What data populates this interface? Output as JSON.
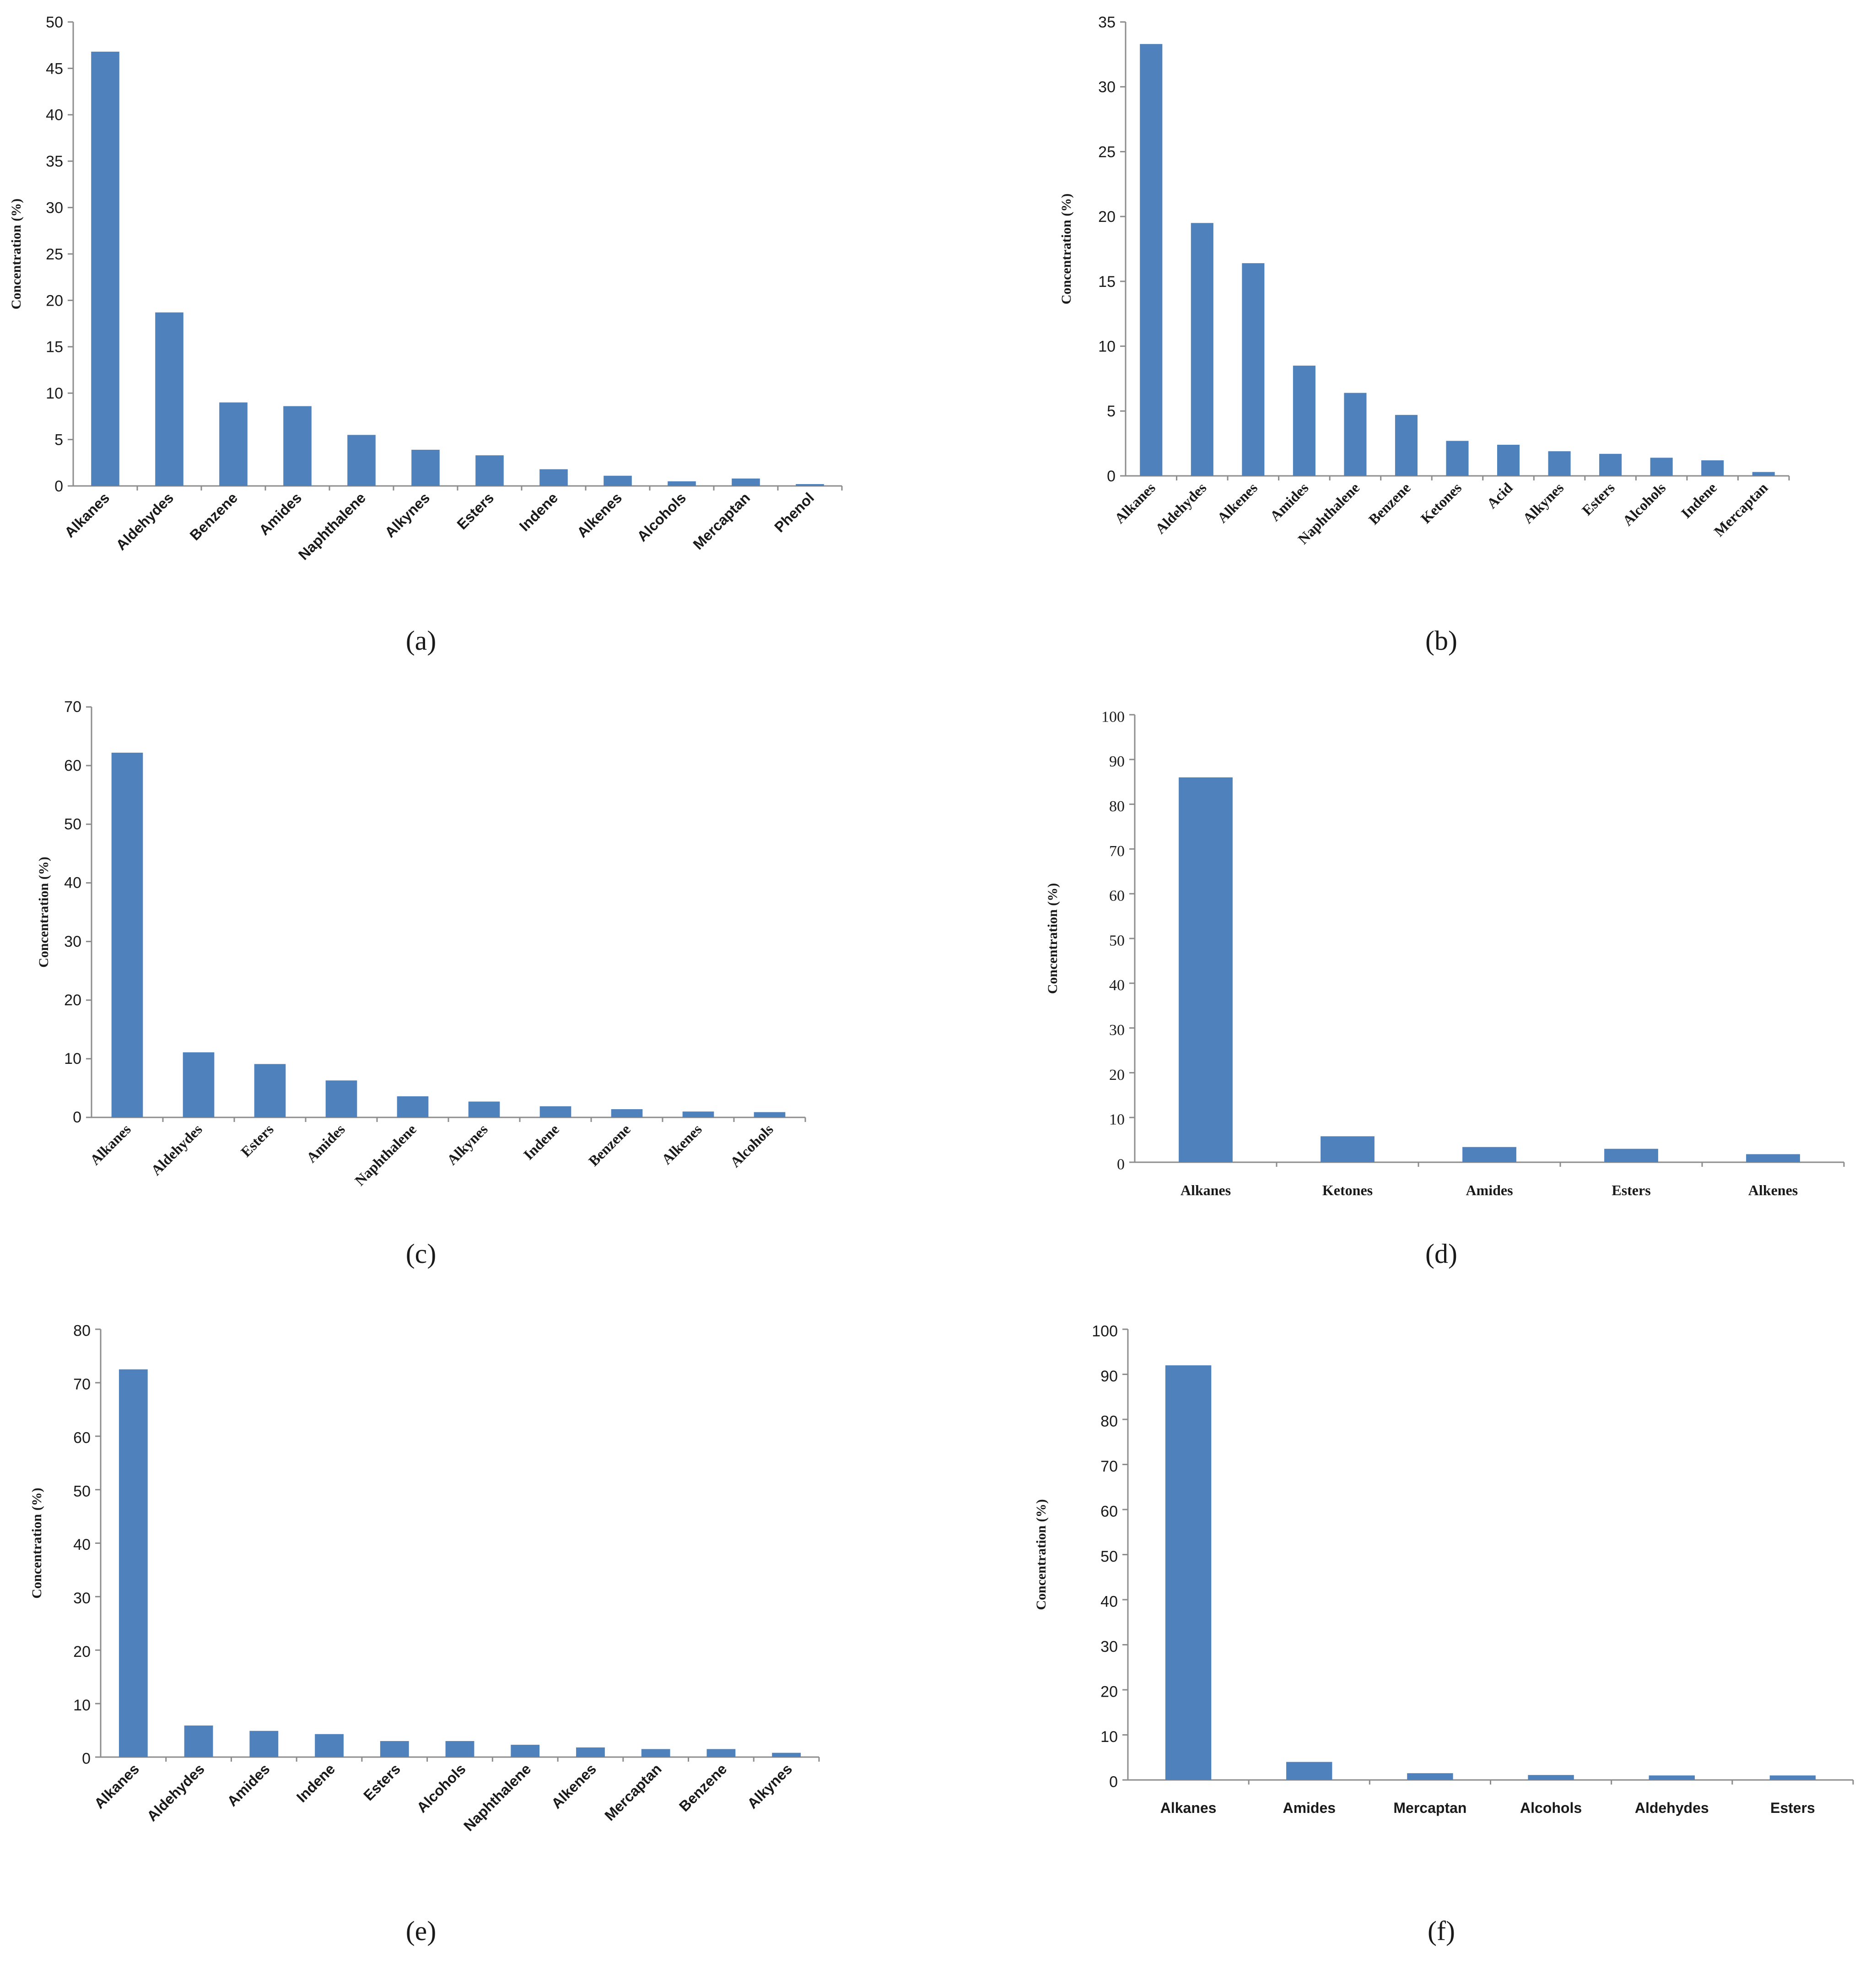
{
  "chart_data": [
    {
      "type": "bar",
      "panel_label": "a",
      "ylabel": "Concentration (%)",
      "ylim": [
        0,
        50
      ],
      "yticks": [
        0,
        5,
        10,
        15,
        20,
        25,
        30,
        35,
        40,
        45,
        50
      ],
      "categories": [
        "Alkanes",
        "Aldehydes",
        "Benzene",
        "Amides",
        "Naphthalene",
        "Alkynes",
        "Esters",
        "Indene",
        "Alkenes",
        "Alcohols",
        "Mercaptan",
        "Phenol"
      ],
      "values": [
        46.8,
        18.7,
        9.0,
        8.6,
        5.5,
        3.9,
        3.3,
        1.8,
        1.1,
        0.5,
        0.8,
        0.2
      ],
      "bar_color": "#4f81bd",
      "grid": false,
      "legend": "none"
    },
    {
      "type": "bar",
      "panel_label": "b",
      "ylabel": "Concentration (%)",
      "ylim": [
        0,
        35
      ],
      "yticks": [
        0,
        5,
        10,
        15,
        20,
        25,
        30,
        35
      ],
      "categories": [
        "Alkanes",
        "Aldehydes",
        "Alkenes",
        "Amides",
        "Naphthalene",
        "Benzene",
        "Ketones",
        "Acid",
        "Alkynes",
        "Esters",
        "Alcohols",
        "Indene",
        "Mercaptan"
      ],
      "values": [
        33.3,
        19.5,
        16.4,
        8.5,
        6.4,
        4.7,
        2.7,
        2.4,
        1.9,
        1.7,
        1.4,
        1.2,
        0.3
      ],
      "bar_color": "#4f81bd",
      "grid": false,
      "legend": "none"
    },
    {
      "type": "bar",
      "panel_label": "c",
      "ylabel": "Concentration (%)",
      "ylim": [
        0,
        70
      ],
      "yticks": [
        0,
        10,
        20,
        30,
        40,
        50,
        60,
        70
      ],
      "categories": [
        "Alkanes",
        "Aldehydes",
        "Esters",
        "Amides",
        "Naphthalene",
        "Alkynes",
        "Indene",
        "Benzene",
        "Alkenes",
        "Alcohols"
      ],
      "values": [
        62.2,
        11.1,
        9.1,
        6.3,
        3.6,
        2.7,
        1.9,
        1.4,
        1.0,
        0.9
      ],
      "bar_color": "#4f81bd",
      "grid": false,
      "legend": "none"
    },
    {
      "type": "bar",
      "panel_label": "d",
      "ylabel": "Concentration (%)",
      "ylim": [
        0,
        100
      ],
      "yticks": [
        0,
        10,
        20,
        30,
        40,
        50,
        60,
        70,
        80,
        90,
        100
      ],
      "categories": [
        "Alkanes",
        "Ketones",
        "Amides",
        "Esters",
        "Alkenes"
      ],
      "values": [
        86.0,
        5.8,
        3.4,
        3.0,
        1.8
      ],
      "bar_color": "#4f81bd",
      "grid": false,
      "legend": "none"
    },
    {
      "type": "bar",
      "panel_label": "e",
      "ylabel": "Concentration (%)",
      "ylim": [
        0,
        80
      ],
      "yticks": [
        0,
        10,
        20,
        30,
        40,
        50,
        60,
        70,
        80
      ],
      "categories": [
        "Alkanes",
        "Aldehydes",
        "Amides",
        "Indene",
        "Esters",
        "Alcohols",
        "Naphthalene",
        "Alkenes",
        "Mercaptan",
        "Benzene",
        "Alkynes"
      ],
      "values": [
        72.5,
        5.9,
        4.9,
        4.3,
        3.0,
        3.0,
        2.3,
        1.8,
        1.5,
        1.5,
        0.8
      ],
      "bar_color": "#4f81bd",
      "grid": false,
      "legend": "none"
    },
    {
      "type": "bar",
      "panel_label": "f",
      "ylabel": "Concentration (%)",
      "ylim": [
        0,
        100
      ],
      "yticks": [
        0,
        10,
        20,
        30,
        40,
        50,
        60,
        70,
        80,
        90,
        100
      ],
      "categories": [
        "Alkanes",
        "Amides",
        "Mercaptan",
        "Alcohols",
        "Aldehydes",
        "Esters"
      ],
      "values": [
        92.0,
        4.0,
        1.5,
        1.1,
        1.0,
        1.0
      ],
      "bar_color": "#4f81bd",
      "grid": false,
      "legend": "none"
    }
  ]
}
